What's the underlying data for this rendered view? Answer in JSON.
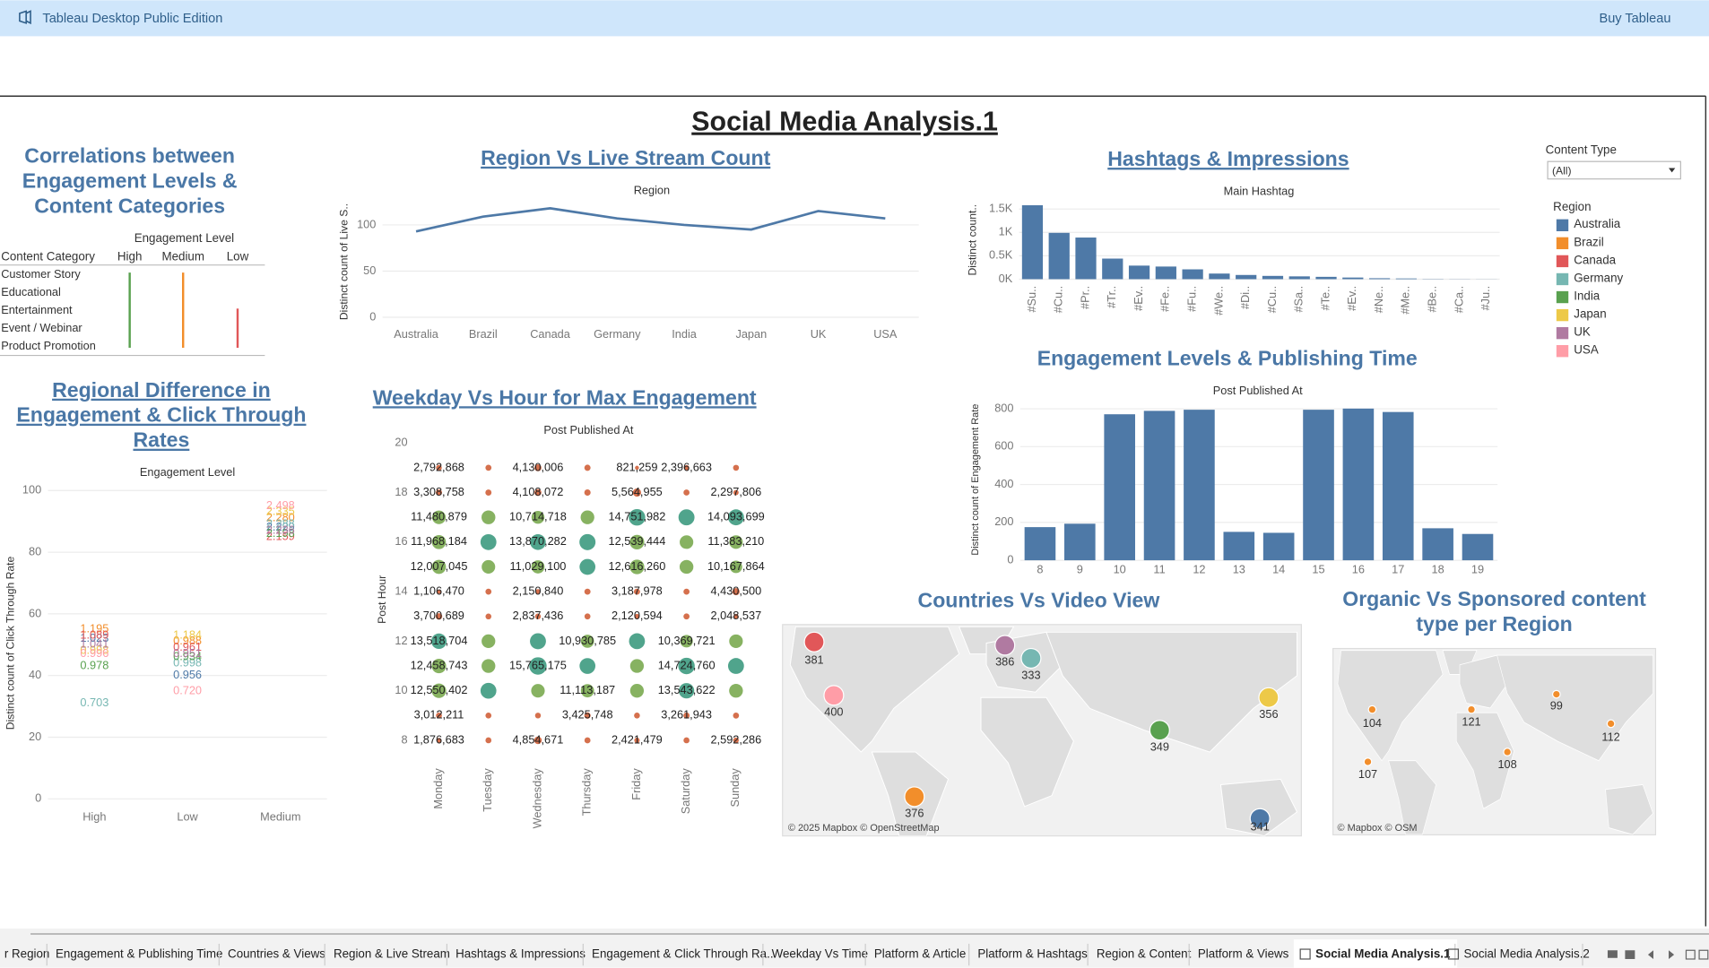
{
  "app": {
    "title": "Tableau Desktop Public Edition",
    "buy": "Buy Tableau"
  },
  "dashboard": {
    "title": "Social Media Analysis.1"
  },
  "filter": {
    "label": "Content Type",
    "value": "(All)"
  },
  "legend": {
    "title": "Region",
    "items": [
      {
        "name": "Australia",
        "color": "#4e79a7"
      },
      {
        "name": "Brazil",
        "color": "#f28e2b"
      },
      {
        "name": "Canada",
        "color": "#e15759"
      },
      {
        "name": "Germany",
        "color": "#76b7b2"
      },
      {
        "name": "India",
        "color": "#59a14f"
      },
      {
        "name": "Japan",
        "color": "#edc948"
      },
      {
        "name": "UK",
        "color": "#b07aa1"
      },
      {
        "name": "USA",
        "color": "#ff9da7"
      }
    ]
  },
  "content_table": {
    "title": [
      "Correlations between",
      "Engagement Levels &",
      "Content Categories"
    ],
    "header": "Engagement Level",
    "row_header": "Content Category",
    "columns": [
      "High",
      "Medium",
      "Low"
    ],
    "colors": [
      "#59a14f",
      "#f28e2b",
      "#e15759"
    ],
    "rows": [
      "Customer Story",
      "Educational",
      "Entertainment",
      "Event / Webinar",
      "Product Promotion"
    ]
  },
  "chart_data": [
    {
      "type": "line",
      "title": "Region Vs Live Stream Count",
      "x_header": "Region",
      "ylabel": "Distinct count of Live S..",
      "categories": [
        "Australia",
        "Brazil",
        "Canada",
        "Germany",
        "India",
        "Japan",
        "UK",
        "USA"
      ],
      "values": [
        93,
        109,
        118,
        107,
        100,
        95,
        115,
        107
      ],
      "color": "#4e79a7",
      "ylim": [
        0,
        125
      ],
      "yticks": [
        0,
        50,
        100
      ],
      "grid": true
    },
    {
      "type": "bar",
      "title": "Hashtags & Impressions",
      "x_header": "Main Hashtag",
      "ylabel": "Distinct count..",
      "categories": [
        "#Su..",
        "#Cu..",
        "#Pr..",
        "#Tr..",
        "#Ev..",
        "#Fe..",
        "#Fu..",
        "#We..",
        "#Di..",
        "#Cu..",
        "#Sa..",
        "#Te..",
        "#Ev..",
        "#Ne..",
        "#Me..",
        "#Be..",
        "#Ca..",
        "#Ju.."
      ],
      "values": [
        1580,
        990,
        890,
        440,
        290,
        270,
        210,
        120,
        90,
        70,
        60,
        50,
        35,
        20,
        15,
        5,
        3,
        2
      ],
      "color": "#4e79a7",
      "ylim": [
        0,
        1700
      ],
      "yticks": [
        {
          "value": 0,
          "label": "0K"
        },
        {
          "value": 500,
          "label": "0.5K"
        },
        {
          "value": 1000,
          "label": "1K"
        },
        {
          "value": 1500,
          "label": "1.5K"
        }
      ],
      "grid": true
    },
    {
      "type": "bar",
      "title": "Engagement Levels & Publishing Time",
      "x_header": "Post Published At",
      "ylabel": "Distinct count of Engagement Rate",
      "categories": [
        "8",
        "9",
        "10",
        "11",
        "12",
        "13",
        "14",
        "15",
        "16",
        "17",
        "18",
        "19"
      ],
      "values": [
        175,
        193,
        771,
        789,
        795,
        150,
        145,
        795,
        801,
        783,
        169,
        139
      ],
      "color": "#4e79a7",
      "ylim": [
        0,
        840
      ],
      "yticks": [
        0,
        200,
        400,
        600,
        800
      ],
      "grid": true
    },
    {
      "type": "text_points",
      "title": [
        "Regional Difference in",
        "Engagement & Click Through",
        "Rates"
      ],
      "x_header": "Engagement Level",
      "ylabel": "Distinct count of Click Through Rate",
      "categories": [
        "High",
        "Low",
        "Medium"
      ],
      "ylim": [
        0,
        100
      ],
      "yticks": [
        0,
        20,
        40,
        60,
        80,
        100
      ],
      "grid": true,
      "series": [
        {
          "name": "Australia",
          "color": "#4e79a7",
          "values": [
            52,
            40,
            88
          ],
          "value_labels": [
            "1.023",
            "0.956",
            "2.229"
          ]
        },
        {
          "name": "Brazil",
          "color": "#f28e2b",
          "values": [
            55,
            51,
            91
          ],
          "value_labels": [
            "1.195",
            "0.988",
            "2.280"
          ]
        },
        {
          "name": "Canada",
          "color": "#e15759",
          "values": [
            53,
            49,
            85
          ],
          "value_labels": [
            "1.089",
            "0.961",
            "2.159"
          ]
        },
        {
          "name": "Germany",
          "color": "#76b7b2",
          "values": [
            31,
            44,
            89
          ],
          "value_labels": [
            "0.703",
            "0.998",
            "2.288"
          ]
        },
        {
          "name": "India",
          "color": "#59a14f",
          "values": [
            43,
            46,
            86
          ],
          "value_labels": [
            "0.978",
            "0.934",
            "2.198"
          ]
        },
        {
          "name": "Japan",
          "color": "#edc948",
          "values": [
            48,
            53,
            93
          ],
          "value_labels": [
            "0.998",
            "1.184",
            "2.335"
          ]
        },
        {
          "name": "UK",
          "color": "#b07aa1",
          "values": [
            50,
            47,
            87
          ],
          "value_labels": [
            "1.041",
            "0.951",
            "2.236"
          ]
        },
        {
          "name": "USA",
          "color": "#ff9da7",
          "values": [
            47,
            35,
            95
          ],
          "value_labels": [
            "0.996",
            "0.720",
            "2.498"
          ]
        }
      ]
    },
    {
      "type": "dot_matrix",
      "title": "Weekday Vs Hour for Max Engagement",
      "x_header": "Post Published At",
      "ylabel": "Post Hour",
      "categories": [
        "Monday",
        "Tuesday",
        "Wednesday",
        "Thursday",
        "Friday",
        "Saturday",
        "Sunday"
      ],
      "ylim": [
        7,
        20.5
      ],
      "yticks": [
        8,
        10,
        12,
        14,
        16,
        18,
        20
      ],
      "colors": [
        "#d0603a",
        "#7aaa50",
        "#3d9a80"
      ],
      "rows": [
        {
          "hour": 19,
          "values": [
            2792868,
            3100000,
            4130006,
            3300000,
            821259,
            2396663,
            3000000
          ],
          "value_labels": [
            "2,792,868",
            null,
            "4,130,006",
            null,
            "821,259",
            "2,396,663",
            null
          ]
        },
        {
          "hour": 18,
          "values": [
            3308758,
            3200000,
            4108072,
            3400000,
            5564955,
            3100000,
            2297806
          ],
          "value_labels": [
            "3,308,758",
            null,
            "4,108,072",
            null,
            "5,564,955",
            null,
            "2,297,806"
          ]
        },
        {
          "hour": 17,
          "values": [
            11480879,
            11800000,
            10714718,
            11600000,
            14751982,
            14200000,
            14093699
          ],
          "value_labels": [
            "11,480,879",
            null,
            "10,714,718",
            null,
            "14,751,982",
            null,
            "14,093,699"
          ]
        },
        {
          "hour": 16,
          "values": [
            11968184,
            14100000,
            13870282,
            14300000,
            12539444,
            11500000,
            11383210
          ],
          "value_labels": [
            "11,968,184",
            null,
            "13,870,282",
            null,
            "12,539,444",
            null,
            "11,383,210"
          ]
        },
        {
          "hour": 15,
          "values": [
            12007045,
            11400000,
            11029100,
            14000000,
            12616260,
            11700000,
            10167864
          ],
          "value_labels": [
            "12,007,045",
            null,
            "11,029,100",
            null,
            "12,616,260",
            null,
            "10,167,864"
          ]
        },
        {
          "hour": 14,
          "values": [
            1106470,
            3000000,
            2150840,
            3200000,
            3187978,
            3100000,
            4430500
          ],
          "value_labels": [
            "1,106,470",
            null,
            "2,150,840",
            null,
            "3,187,978",
            null,
            "4,430,500"
          ]
        },
        {
          "hour": 13,
          "values": [
            3700689,
            2900000,
            2837436,
            3000000,
            2120594,
            3100000,
            2048537
          ],
          "value_labels": [
            "3,700,689",
            null,
            "2,837,436",
            null,
            "2,120,594",
            null,
            "2,048,537"
          ]
        },
        {
          "hour": 12,
          "values": [
            13518704,
            11600000,
            14200000,
            10930785,
            14100000,
            10369721,
            11500000
          ],
          "value_labels": [
            "13,518,704",
            null,
            null,
            "10,930,785",
            null,
            "10,369,721",
            null
          ]
        },
        {
          "hour": 11,
          "values": [
            12458743,
            11700000,
            15765175,
            14000000,
            11600000,
            14724760,
            14100000
          ],
          "value_labels": [
            "12,458,743",
            null,
            "15,765,175",
            null,
            null,
            "14,724,760",
            null
          ]
        },
        {
          "hour": 10,
          "values": [
            12550402,
            14000000,
            11500000,
            11113187,
            11600000,
            13543622,
            11700000
          ],
          "value_labels": [
            "12,550,402",
            null,
            null,
            "11,113,187",
            null,
            "13,543,622",
            null
          ]
        },
        {
          "hour": 9,
          "values": [
            3012211,
            3000000,
            2800000,
            3425748,
            2900000,
            3261943,
            3100000
          ],
          "value_labels": [
            "3,012,211",
            null,
            null,
            "3,425,748",
            null,
            "3,261,943",
            null
          ]
        },
        {
          "hour": 8,
          "values": [
            1876683,
            3000000,
            4854671,
            3100000,
            2421479,
            3000000,
            2592286
          ],
          "value_labels": [
            "1,876,683",
            null,
            "4,854,671",
            null,
            "2,421,479",
            null,
            "2,592,286"
          ]
        }
      ]
    },
    {
      "type": "map",
      "title": [
        "Countries Vs Video View"
      ],
      "attribution": "© 2025 Mapbox © OpenStreetMap",
      "values": [
        381,
        400,
        386,
        333,
        356,
        349,
        376,
        341
      ],
      "colors": [
        "#e15759",
        "#ff9da7",
        "#b07aa1",
        "#76b7b2",
        "#edc948",
        "#59a14f",
        "#f28e2b",
        "#4e79a7"
      ]
    },
    {
      "type": "map",
      "title": [
        "Organic Vs Sponsored content",
        "type per Region"
      ],
      "attribution": "© Mapbox © OSM",
      "values": [
        104,
        121,
        99,
        112,
        107,
        108
      ],
      "color": "#f28e2b"
    }
  ],
  "tabs": [
    "r Region",
    "Engagement & Publishing Time",
    "Countries & Views",
    "Region & Live Stream",
    "Hashtags & Impressions",
    "Engagement & Click Through Ra...",
    "Weekday Vs Time",
    "Platform & Article",
    "Platform & Hashtags",
    "Region & Content",
    "Platform & Views",
    "Social Media Analysis.1",
    "Social Media Analysis.2"
  ],
  "active_tab": 11
}
